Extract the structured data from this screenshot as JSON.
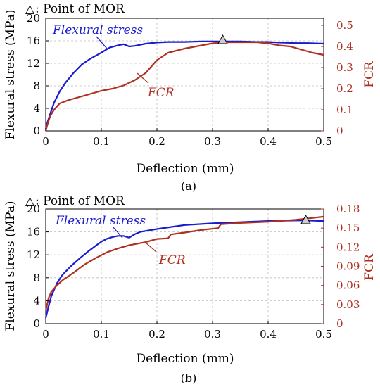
{
  "chart_data": [
    {
      "type": "line",
      "caption": "(a)",
      "annotation": {
        "symbol": "△",
        "text": ": Point of MOR",
        "mor_point": [
          0.317,
          15.9
        ]
      },
      "xlabel": "Deflection  (mm)",
      "ylabel_left": "Flexural stress (MPa)",
      "ylabel_right": "FCR",
      "xlim": [
        0,
        0.5
      ],
      "ylim_left": [
        0,
        20
      ],
      "ylim_right": [
        0,
        0.53333
      ],
      "xticks": [
        "0",
        "0.1",
        "0.2",
        "0.3",
        "0.4",
        "0.5"
      ],
      "yticks_left": [
        "0",
        "4",
        "8",
        "12",
        "16",
        "20"
      ],
      "yticks_right": [
        "0",
        "0.1",
        "0.2",
        "0.3",
        "0.4",
        "0.5"
      ],
      "grid": true,
      "series": [
        {
          "name": "Flexural stress",
          "axis": "left",
          "color": "#1a1ad0",
          "x": [
            0,
            0.003,
            0.008,
            0.015,
            0.025,
            0.035,
            0.05,
            0.065,
            0.08,
            0.1,
            0.115,
            0.13,
            0.14,
            0.15,
            0.16,
            0.18,
            0.2,
            0.22,
            0.25,
            0.28,
            0.3,
            0.32,
            0.35,
            0.38,
            0.4,
            0.42,
            0.45,
            0.47,
            0.5
          ],
          "y": [
            0.3,
            1.5,
            3.0,
            5.0,
            7.0,
            8.5,
            10.3,
            11.8,
            12.8,
            13.9,
            14.8,
            15.2,
            15.4,
            15.0,
            15.1,
            15.5,
            15.7,
            15.8,
            15.8,
            15.9,
            15.9,
            15.9,
            15.9,
            15.8,
            15.8,
            15.7,
            15.6,
            15.6,
            15.5
          ]
        },
        {
          "name": "FCR",
          "axis": "right",
          "color": "#b03020",
          "x": [
            0,
            0.003,
            0.008,
            0.015,
            0.025,
            0.04,
            0.06,
            0.08,
            0.1,
            0.12,
            0.14,
            0.16,
            0.18,
            0.2,
            0.22,
            0.25,
            0.28,
            0.3,
            0.32,
            0.35,
            0.38,
            0.4,
            0.42,
            0.44,
            0.46,
            0.48,
            0.5
          ],
          "y": [
            0.0,
            0.03,
            0.07,
            0.1,
            0.13,
            0.145,
            0.16,
            0.175,
            0.19,
            0.2,
            0.215,
            0.24,
            0.275,
            0.335,
            0.37,
            0.39,
            0.405,
            0.415,
            0.42,
            0.42,
            0.42,
            0.415,
            0.405,
            0.4,
            0.385,
            0.37,
            0.36
          ]
        }
      ]
    },
    {
      "type": "line",
      "caption": "(b)",
      "annotation": {
        "symbol": "△",
        "text": ": Point of MOR",
        "mor_point": [
          0.468,
          18.0
        ]
      },
      "xlabel": "Deflection  (mm)",
      "ylabel_left": "Flexural stress (MPa)",
      "ylabel_right": "FCR",
      "xlim": [
        0,
        0.5
      ],
      "ylim_left": [
        0,
        20
      ],
      "ylim_right": [
        0,
        0.18
      ],
      "xticks": [
        "0",
        "0.1",
        "0.2",
        "0.3",
        "0.4",
        "0.5"
      ],
      "yticks_left": [
        "0",
        "4",
        "8",
        "12",
        "16",
        "20"
      ],
      "yticks_right": [
        "0",
        "0.03",
        "0.06",
        "0.09",
        "0.12",
        "0.15",
        "0.18"
      ],
      "grid": true,
      "series": [
        {
          "name": "Flexural stress",
          "axis": "left",
          "color": "#1a1ad0",
          "x": [
            0,
            0.005,
            0.01,
            0.02,
            0.03,
            0.045,
            0.06,
            0.075,
            0.09,
            0.1,
            0.11,
            0.12,
            0.13,
            0.14,
            0.15,
            0.16,
            0.17,
            0.2,
            0.25,
            0.3,
            0.35,
            0.4,
            0.45,
            0.47,
            0.5
          ],
          "y": [
            1.0,
            3.0,
            4.8,
            7.0,
            8.5,
            10.0,
            11.3,
            12.5,
            13.6,
            14.3,
            14.8,
            15.1,
            15.3,
            15.3,
            15.0,
            15.6,
            16.0,
            16.5,
            17.2,
            17.5,
            17.7,
            17.9,
            18.0,
            18.0,
            17.9
          ]
        },
        {
          "name": "FCR",
          "axis": "right",
          "color": "#b03020",
          "x": [
            0,
            0.005,
            0.01,
            0.02,
            0.03,
            0.05,
            0.07,
            0.09,
            0.11,
            0.13,
            0.15,
            0.18,
            0.2,
            0.22,
            0.225,
            0.25,
            0.28,
            0.31,
            0.315,
            0.35,
            0.4,
            0.45,
            0.48,
            0.5
          ],
          "y": [
            0.02,
            0.04,
            0.05,
            0.06,
            0.068,
            0.08,
            0.093,
            0.103,
            0.112,
            0.118,
            0.123,
            0.128,
            0.133,
            0.134,
            0.14,
            0.143,
            0.147,
            0.15,
            0.156,
            0.158,
            0.16,
            0.163,
            0.166,
            0.168
          ]
        }
      ]
    }
  ]
}
